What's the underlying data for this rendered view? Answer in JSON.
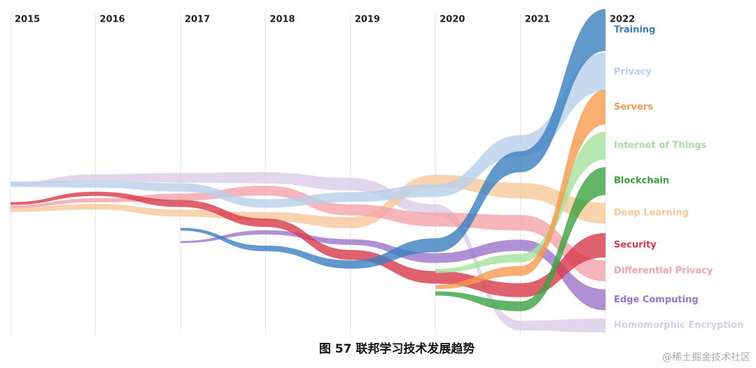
{
  "chart_data": {
    "type": "bump",
    "caption": "图 57 联邦学习技术发展趋势",
    "watermark": "@稀土掘金技术社区",
    "x": [
      "2015",
      "2016",
      "2017",
      "2018",
      "2019",
      "2020",
      "2021",
      "2022"
    ],
    "ylim": [
      0,
      100
    ],
    "grid": true,
    "series": [
      {
        "name": "Homomorphic Encryption",
        "color": "#d9cce6",
        "values": [
          47,
          49,
          49,
          49,
          47,
          39,
          3,
          3
        ],
        "weights": [
          4,
          10,
          14,
          16,
          18,
          16,
          14,
          20
        ]
      },
      {
        "name": "Deep Learning",
        "color": "#f8c899",
        "values": [
          39,
          40,
          38,
          37,
          35,
          48,
          45,
          38
        ],
        "weights": [
          6,
          8,
          10,
          12,
          16,
          18,
          22,
          30
        ]
      },
      {
        "name": "Differential Privacy",
        "color": "#f4a3aa",
        "values": [
          40,
          42,
          43,
          45,
          39,
          36,
          35,
          20
        ],
        "weights": [
          4,
          6,
          10,
          14,
          16,
          20,
          22,
          30
        ]
      },
      {
        "name": "Privacy",
        "color": "#b9cfea",
        "values": [
          47,
          47,
          46,
          41,
          43,
          45,
          59,
          82
        ],
        "weights": [
          8,
          10,
          12,
          12,
          14,
          18,
          30,
          55
        ]
      },
      {
        "name": "Edge Computing",
        "color": "#9b74c9",
        "values": [
          null,
          null,
          29,
          32,
          29,
          24,
          28,
          11
        ],
        "weights": [
          null,
          null,
          3,
          6,
          8,
          14,
          16,
          30
        ]
      },
      {
        "name": "Security",
        "color": "#d8394a",
        "values": [
          41,
          44,
          41,
          35,
          25,
          18,
          14,
          28
        ],
        "weights": [
          4,
          6,
          10,
          12,
          14,
          18,
          20,
          35
        ]
      },
      {
        "name": "Internet of Things",
        "color": "#a6e29f",
        "values": [
          null,
          null,
          null,
          null,
          null,
          20,
          24,
          59
        ],
        "weights": [
          null,
          null,
          null,
          null,
          null,
          6,
          12,
          40
        ]
      },
      {
        "name": "Servers",
        "color": "#f59a4c",
        "values": [
          null,
          null,
          null,
          null,
          null,
          15,
          20,
          71
        ],
        "weights": [
          null,
          null,
          null,
          null,
          null,
          6,
          14,
          50
        ]
      },
      {
        "name": "Blockchain",
        "color": "#3aa340",
        "values": [
          null,
          null,
          null,
          null,
          null,
          13,
          9,
          48
        ],
        "weights": [
          null,
          null,
          null,
          null,
          null,
          6,
          14,
          40
        ]
      },
      {
        "name": "Training",
        "color": "#3a7fc0",
        "values": [
          null,
          null,
          33,
          27,
          22,
          28,
          54,
          95
        ],
        "weights": [
          null,
          null,
          4,
          8,
          12,
          20,
          30,
          60
        ]
      }
    ]
  }
}
